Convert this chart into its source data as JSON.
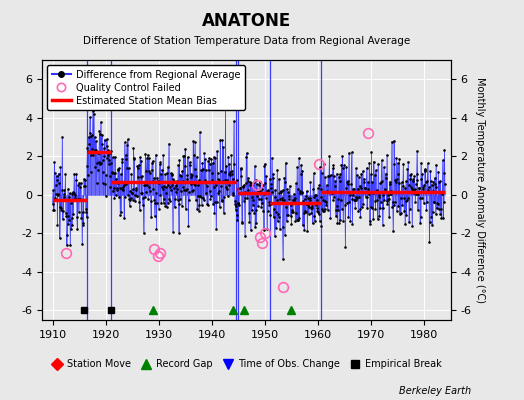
{
  "title": "ANATONE",
  "subtitle": "Difference of Station Temperature Data from Regional Average",
  "ylabel": "Monthly Temperature Anomaly Difference (°C)",
  "xlabel_years": [
    1910,
    1920,
    1930,
    1940,
    1950,
    1960,
    1970,
    1980
  ],
  "xlim": [
    1908,
    1985
  ],
  "ylim": [
    -6.5,
    7.0
  ],
  "yticks": [
    -6,
    -4,
    -2,
    0,
    2,
    4,
    6
  ],
  "background_color": "#e8e8e8",
  "plot_bg_color": "#e8e8e8",
  "grid_color": "#ffffff",
  "line_color": "#3333ff",
  "dot_color": "#000000",
  "bias_color": "#ff0000",
  "qc_fail_color": "#ff69b4",
  "watermark": "Berkeley Earth",
  "segment_biases": [
    {
      "start": 1910.0,
      "end": 1916.5,
      "bias": -0.25
    },
    {
      "start": 1916.5,
      "end": 1921.0,
      "bias": 2.2
    },
    {
      "start": 1921.0,
      "end": 1944.5,
      "bias": 0.65
    },
    {
      "start": 1944.5,
      "end": 1945.0,
      "bias": 0.3
    },
    {
      "start": 1945.0,
      "end": 1951.0,
      "bias": 0.1
    },
    {
      "start": 1951.0,
      "end": 1960.5,
      "bias": -0.4
    },
    {
      "start": 1960.5,
      "end": 1984.0,
      "bias": 0.15
    }
  ],
  "vertical_breaks": [
    1916.5,
    1921.0,
    1944.5,
    1945.0,
    1951.0,
    1960.5
  ],
  "bottom_markers": {
    "empirical_breaks": [
      1916,
      1921
    ],
    "record_gaps": [
      1929,
      1944,
      1946,
      1955
    ],
    "time_of_obs": [],
    "station_moves": []
  },
  "qc_fail_points": [
    [
      1912.5,
      -3.0
    ],
    [
      1929.2,
      -2.8
    ],
    [
      1929.8,
      -3.2
    ],
    [
      1930.3,
      -3.0
    ],
    [
      1948.5,
      0.5
    ],
    [
      1949.0,
      -2.2
    ],
    [
      1949.5,
      -2.5
    ],
    [
      1950.0,
      -2.0
    ],
    [
      1953.5,
      -4.8
    ],
    [
      1960.2,
      1.6
    ],
    [
      1969.5,
      3.2
    ]
  ],
  "seed": 12345
}
